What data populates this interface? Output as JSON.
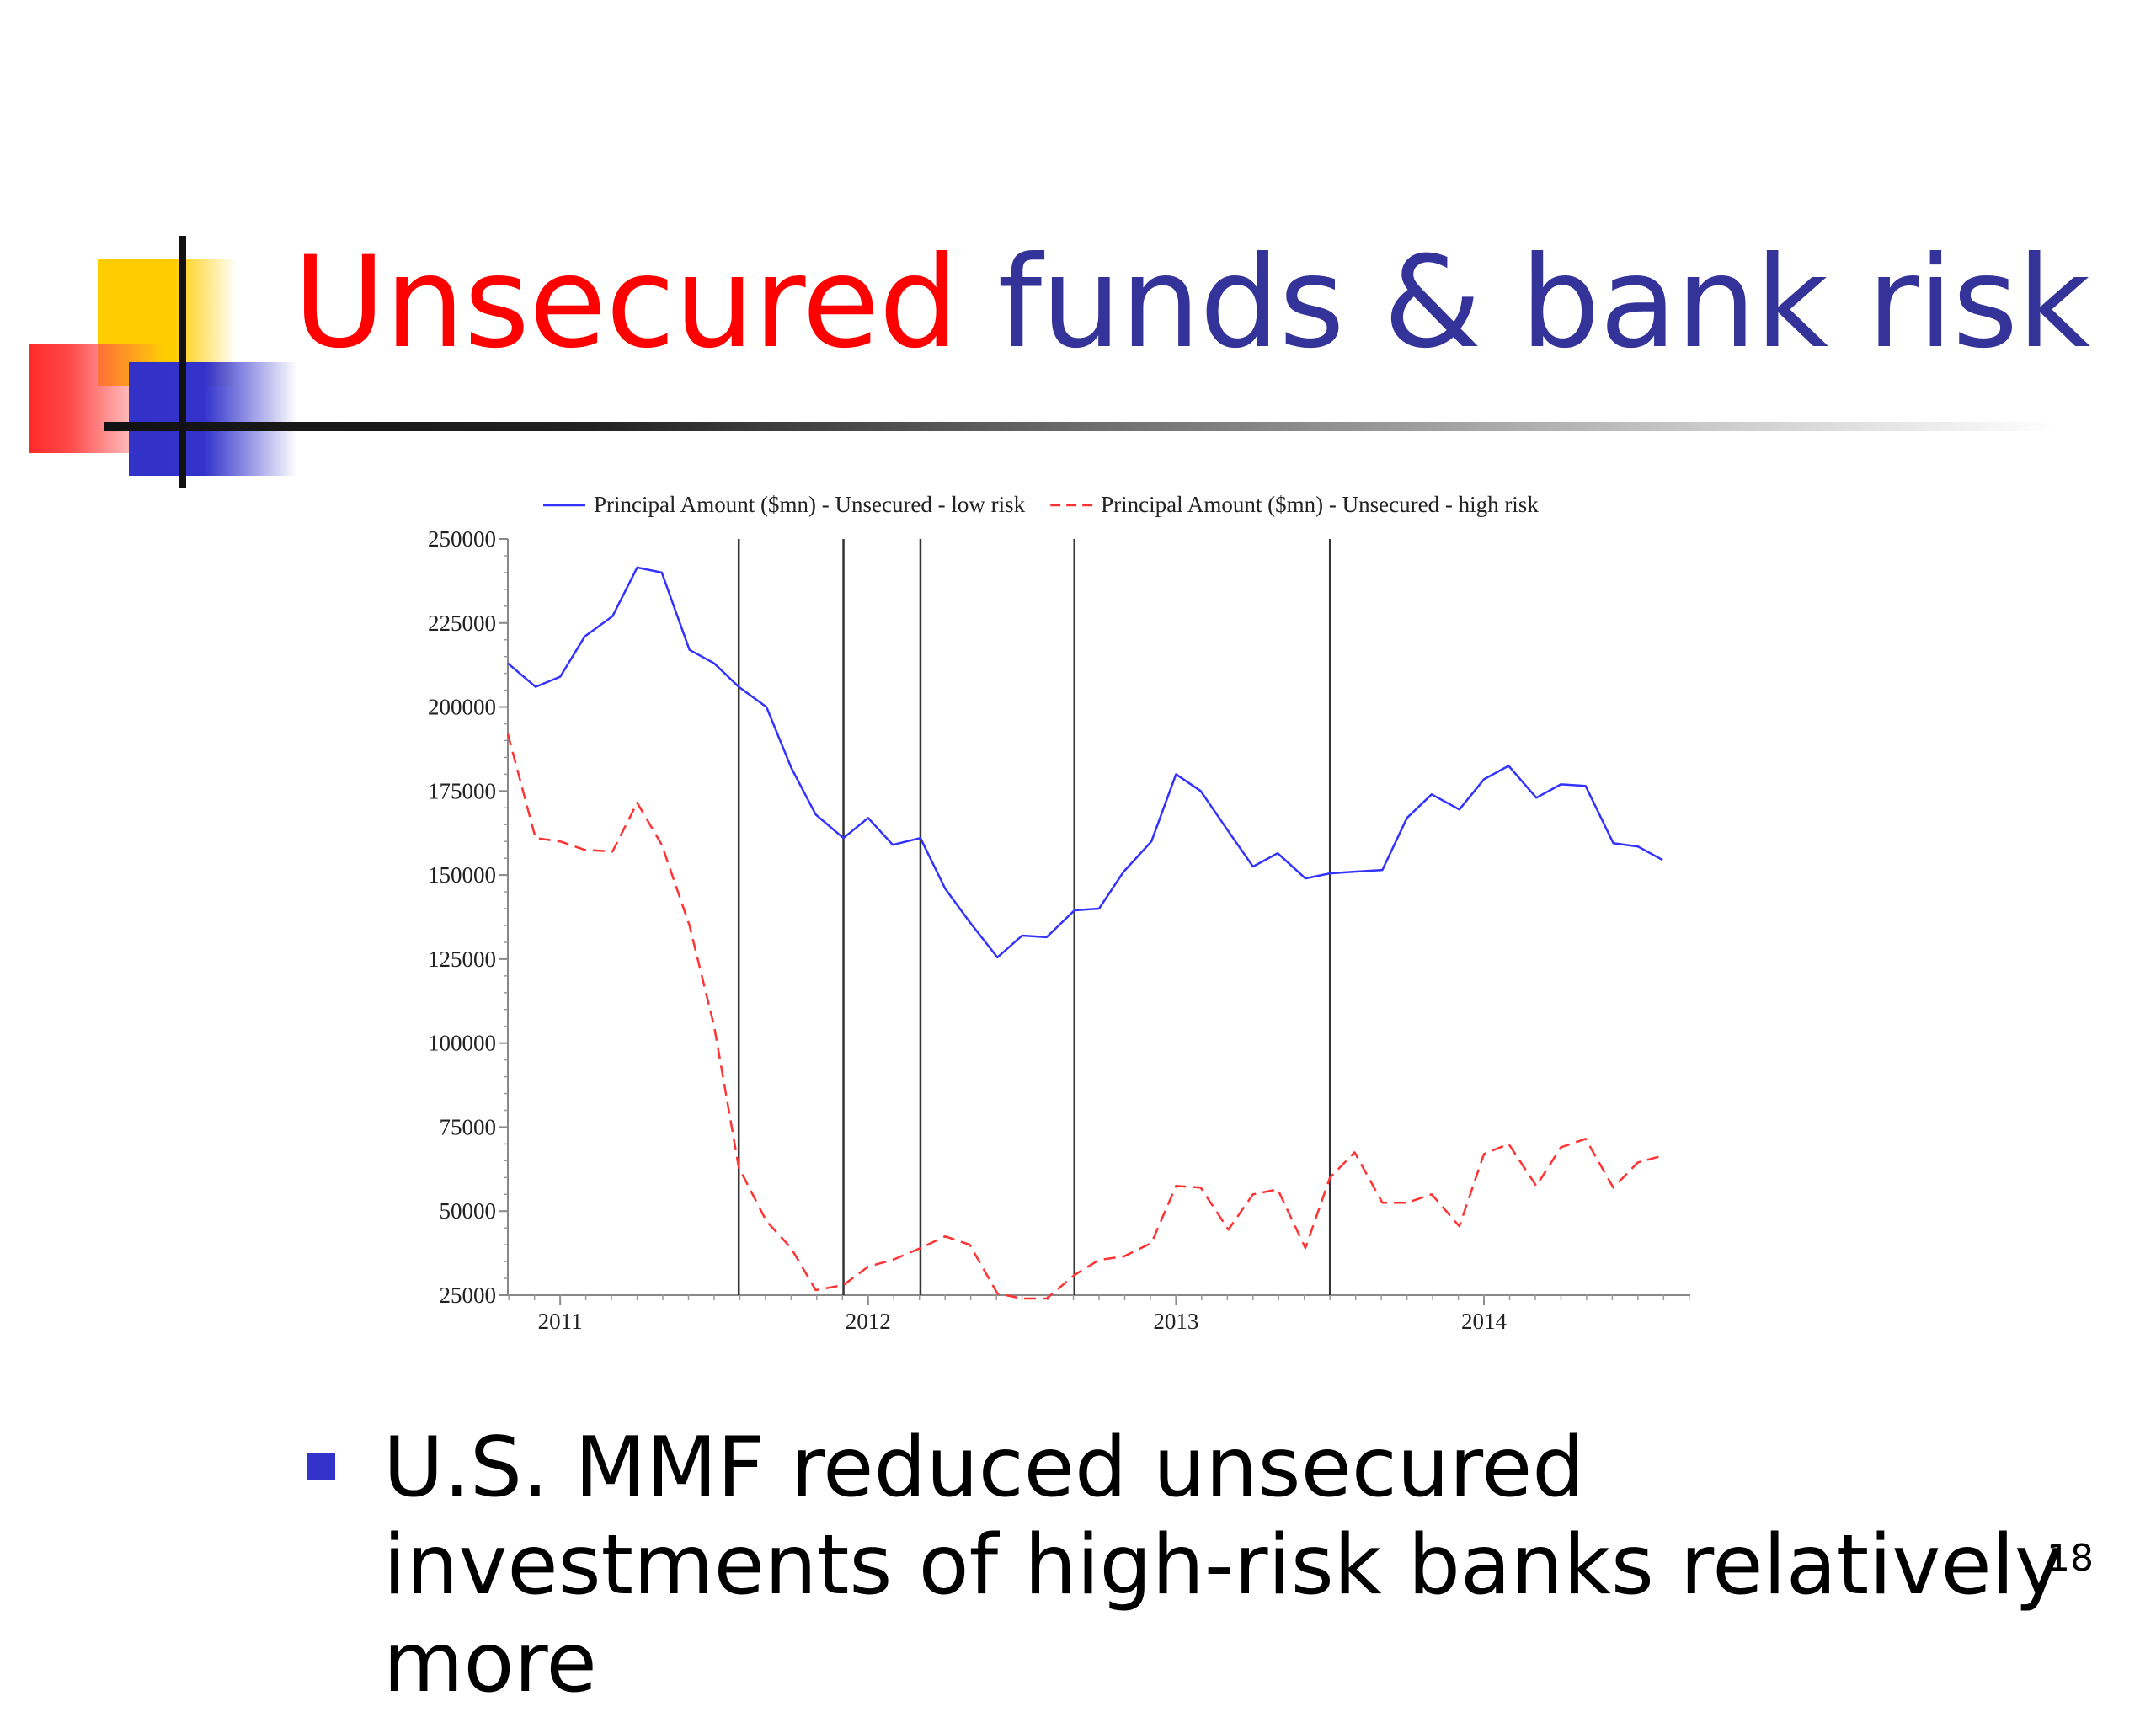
{
  "slide": {
    "title_part1": "Unsecured",
    "title_part2": "funds & bank risk",
    "bullet": "U.S. MMF reduced unsecured investments of high-risk banks relatively more",
    "page_number": "18"
  },
  "chart_data": {
    "type": "line",
    "title": "",
    "xlabel": "",
    "ylabel": "",
    "x_ticks": [
      "2011",
      "2012",
      "2013",
      "2014"
    ],
    "x_tick_positions": [
      2011.0,
      2012.0,
      2013.0,
      2014.0
    ],
    "xlim": [
      2010.83,
      2014.67
    ],
    "ylim": [
      25000,
      250000
    ],
    "y_ticks": [
      25000,
      50000,
      75000,
      100000,
      125000,
      150000,
      175000,
      200000,
      225000,
      250000
    ],
    "event_lines": [
      2011.58,
      2011.92,
      2012.17,
      2012.67,
      2013.5
    ],
    "legend_position": "top",
    "grid": false,
    "series": [
      {
        "name": "Principal Amount ($mn) - Unsecured - low risk",
        "color": "#3333ff",
        "style": "solid",
        "x": [
          2010.83,
          2010.92,
          2011.0,
          2011.08,
          2011.17,
          2011.25,
          2011.33,
          2011.42,
          2011.5,
          2011.58,
          2011.67,
          2011.75,
          2011.83,
          2011.92,
          2012.0,
          2012.08,
          2012.17,
          2012.25,
          2012.33,
          2012.42,
          2012.5,
          2012.58,
          2012.67,
          2012.75,
          2012.83,
          2012.92,
          2013.0,
          2013.08,
          2013.17,
          2013.25,
          2013.33,
          2013.42,
          2013.5,
          2013.58,
          2013.67,
          2013.75,
          2013.83,
          2013.92,
          2014.0,
          2014.08,
          2014.17,
          2014.25,
          2014.33,
          2014.42,
          2014.5,
          2014.58
        ],
        "values": [
          213000,
          206000,
          209000,
          221000,
          227000,
          241500,
          240000,
          217000,
          213000,
          206000,
          200000,
          182000,
          168000,
          161000,
          167000,
          159000,
          161000,
          146000,
          136000,
          125500,
          132000,
          131500,
          139500,
          140000,
          151000,
          160000,
          180000,
          175000,
          163000,
          152500,
          156500,
          149000,
          150500,
          151000,
          151500,
          167000,
          174000,
          169500,
          178500,
          182500,
          173000,
          177000,
          176500,
          159500,
          158500,
          154500
        ]
      },
      {
        "name": "Principal Amount ($mn) - Unsecured - high risk",
        "color": "#ff3333",
        "style": "dashed",
        "x": [
          2010.83,
          2010.92,
          2011.0,
          2011.08,
          2011.17,
          2011.25,
          2011.33,
          2011.42,
          2011.5,
          2011.58,
          2011.67,
          2011.75,
          2011.83,
          2011.92,
          2012.0,
          2012.08,
          2012.17,
          2012.25,
          2012.33,
          2012.42,
          2012.5,
          2012.58,
          2012.67,
          2012.75,
          2012.83,
          2012.92,
          2013.0,
          2013.08,
          2013.17,
          2013.25,
          2013.33,
          2013.42,
          2013.5,
          2013.58,
          2013.67,
          2013.75,
          2013.83,
          2013.92,
          2014.0,
          2014.08,
          2014.17,
          2014.25,
          2014.33,
          2014.42,
          2014.5,
          2014.58
        ],
        "values": [
          192000,
          161000,
          160000,
          157500,
          157000,
          171500,
          159000,
          135000,
          105000,
          63000,
          47000,
          39000,
          26500,
          28000,
          33500,
          35500,
          39000,
          42500,
          40000,
          25500,
          24000,
          24000,
          31000,
          35500,
          36500,
          40500,
          57500,
          57000,
          44500,
          55000,
          56500,
          39000,
          60000,
          67500,
          52500,
          52500,
          55000,
          45500,
          67000,
          70000,
          57500,
          69000,
          71500,
          57000,
          64500,
          66500
        ]
      }
    ]
  }
}
